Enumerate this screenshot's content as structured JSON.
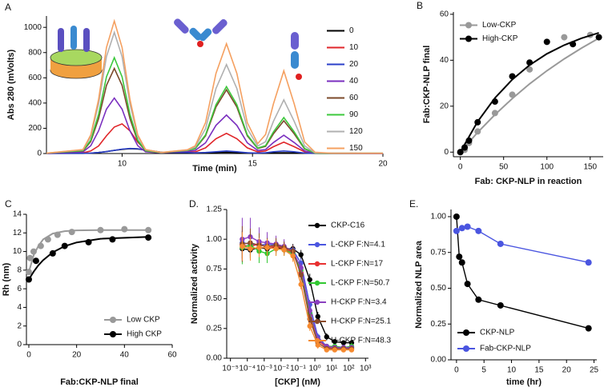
{
  "chart_data": [
    {
      "type": "line",
      "panel": "A",
      "xlabel": "Time (min)",
      "ylabel": "Abs 280 (mVolts)",
      "xlim": [
        7.1,
        20
      ],
      "ylim": [
        0,
        1090
      ],
      "xticks": [
        10,
        15,
        20
      ],
      "yticks": [
        0,
        200,
        400,
        600,
        800,
        1000
      ],
      "legend": "upper right",
      "x": [
        7.1,
        8.5,
        8.8,
        9.1,
        9.4,
        9.7,
        10.0,
        10.3,
        10.6,
        10.9,
        11.5,
        12.5,
        12.8,
        13.2,
        13.6,
        14.0,
        14.4,
        14.8,
        15.2,
        15.5,
        15.8,
        16.2,
        16.6,
        17.0,
        17.4,
        18,
        20
      ],
      "series": [
        {
          "name": "0",
          "color": "#000000",
          "values": [
            1,
            1,
            3,
            8,
            15,
            25,
            33,
            38,
            36,
            28,
            10,
            8,
            5,
            6,
            8,
            10,
            8,
            5,
            3,
            3,
            5,
            6,
            5,
            3,
            1,
            1,
            1
          ]
        },
        {
          "name": "10",
          "color": "#e0262a",
          "values": [
            1,
            5,
            20,
            60,
            140,
            210,
            235,
            180,
            90,
            30,
            6,
            12,
            12,
            45,
            117,
            160,
            117,
            45,
            13,
            20,
            54,
            90,
            54,
            13,
            2,
            1,
            1
          ]
        },
        {
          "name": "20",
          "color": "#2a3fc8",
          "values": [
            1,
            2,
            4,
            8,
            15,
            25,
            35,
            40,
            38,
            25,
            8,
            8,
            5,
            8,
            14,
            20,
            14,
            6,
            4,
            6,
            14,
            20,
            14,
            4,
            2,
            1,
            1
          ]
        },
        {
          "name": "40",
          "color": "#7a2fbf",
          "values": [
            2,
            13,
            62,
            180,
            352,
            440,
            352,
            180,
            62,
            13,
            5,
            18,
            24,
            85,
            223,
            305,
            223,
            85,
            24,
            32,
            87,
            145,
            87,
            20,
            3,
            2,
            1
          ]
        },
        {
          "name": "60",
          "color": "#7b4a2a",
          "values": [
            3,
            20,
            95,
            277,
            540,
            675,
            540,
            277,
            95,
            20,
            7,
            25,
            38,
            141,
            369,
            505,
            369,
            141,
            40,
            57,
            156,
            260,
            156,
            36,
            4,
            2,
            2
          ]
        },
        {
          "name": "90",
          "color": "#3cc83c",
          "values": [
            3,
            23,
            106,
            312,
            608,
            760,
            608,
            312,
            106,
            23,
            7,
            25,
            40,
            148,
            387,
            530,
            387,
            148,
            43,
            63,
            171,
            285,
            171,
            40,
            4,
            2,
            2
          ]
        },
        {
          "name": "120",
          "color": "#b0b0b0",
          "values": [
            3,
            29,
            134,
            394,
            768,
            960,
            768,
            394,
            134,
            29,
            8,
            28,
            50,
            197,
            515,
            705,
            515,
            197,
            59,
            94,
            255,
            425,
            255,
            60,
            6,
            3,
            2
          ]
        },
        {
          "name": "150",
          "color": "#f5a060",
          "values": [
            3,
            32,
            147,
            430,
            840,
            1050,
            840,
            430,
            147,
            32,
            8,
            30,
            60,
            245,
            635,
            870,
            635,
            245,
            78,
            150,
            393,
            655,
            393,
            92,
            10,
            3,
            2
          ]
        }
      ]
    },
    {
      "type": "scatter",
      "panel": "B",
      "xlabel": "Fab: CKP-NLP in reaction",
      "ylabel": "Fab:CKP-NLP final",
      "xlim": [
        -8,
        165
      ],
      "ylim": [
        -2,
        61
      ],
      "xticks": [
        0,
        50,
        100,
        150
      ],
      "yticks": [
        0,
        20,
        40,
        60
      ],
      "legend": "upper left",
      "series": [
        {
          "name": "Low-CKP",
          "color": "#999999",
          "x": [
            0,
            5,
            10,
            20,
            40,
            60,
            80,
            120,
            150
          ],
          "values": [
            0,
            1,
            4,
            9,
            17,
            25,
            36,
            50,
            51
          ],
          "fit": {
            "x": [
              0,
              20,
              40,
              60,
              80,
              100,
              120,
              140,
              160
            ],
            "values": [
              0,
              8.6,
              16.3,
              23.3,
              29.7,
              35.4,
              40.6,
              45.3,
              49.6
            ]
          }
        },
        {
          "name": "High-CKP",
          "color": "#000000",
          "x": [
            0,
            5,
            10,
            20,
            40,
            60,
            80,
            100,
            130,
            160
          ],
          "values": [
            0,
            2,
            5,
            13,
            22,
            33,
            39,
            48,
            47,
            50
          ],
          "fit": {
            "x": [
              0,
              20,
              40,
              60,
              80,
              100,
              120,
              140,
              160
            ],
            "values": [
              0,
              13.3,
              23.6,
              31.6,
              37.9,
              42.8,
              46.6,
              49.6,
              51.9
            ]
          }
        }
      ]
    },
    {
      "type": "scatter",
      "panel": "C",
      "xlabel": "Fab:CKP-NLP final",
      "ylabel": "Rh (nm)",
      "xlim": [
        -1,
        60
      ],
      "ylim": [
        0,
        14
      ],
      "xticks": [
        0,
        20,
        40,
        60
      ],
      "yticks": [
        0,
        2,
        4,
        6,
        8,
        10,
        12,
        14
      ],
      "legend": "lower right",
      "series": [
        {
          "name": "Low CKP",
          "color": "#999999",
          "x": [
            0,
            0.5,
            2,
            5,
            8,
            12,
            18,
            30,
            40,
            50
          ],
          "values": [
            7.8,
            9.3,
            10,
            10.6,
            11.3,
            11.8,
            12.1,
            12.3,
            12.4,
            12.3
          ],
          "fit": {
            "x": [
              0,
              2,
              4,
              6,
              10,
              15,
              20,
              30,
              50
            ],
            "values": [
              7.8,
              9.6,
              10.6,
              11.3,
              11.93,
              12.19,
              12.27,
              12.3,
              12.3
            ]
          }
        },
        {
          "name": "High CKP",
          "color": "#000000",
          "x": [
            0,
            3,
            10,
            15,
            25,
            35,
            50
          ],
          "values": [
            7,
            9,
            9.8,
            10.6,
            11,
            11.3,
            11.5
          ],
          "fit": {
            "x": [
              0,
              2,
              4,
              6,
              10,
              15,
              20,
              30,
              50
            ],
            "values": [
              7.0,
              7.83,
              8.52,
              9.08,
              9.91,
              10.57,
              10.98,
              11.37,
              11.57
            ]
          }
        }
      ]
    },
    {
      "type": "scatter",
      "panel": "D.",
      "xlabel": "[CKP] (nM)",
      "ylabel": "Normalized activity",
      "log_x": true,
      "lines": true,
      "xlim": [
        6e-06,
        1500
      ],
      "ylim": [
        0,
        1.25
      ],
      "xticks": [
        {
          "value": 1e-05,
          "label": "10⁻⁵"
        },
        {
          "value": 0.0001,
          "label": "10⁻⁴"
        },
        {
          "value": 0.001,
          "label": "10⁻³"
        },
        {
          "value": 0.01,
          "label": "10⁻²"
        },
        {
          "value": 0.1,
          "label": "10⁻¹"
        },
        {
          "value": 1,
          "label": "10⁰"
        },
        {
          "value": 10,
          "label": "10¹"
        },
        {
          "value": 100,
          "label": "10²"
        },
        {
          "value": 1000,
          "label": "10³"
        }
      ],
      "yticks": [
        {
          "value": 0,
          "label": "0.00"
        },
        {
          "value": 0.25,
          "label": "0.25"
        },
        {
          "value": 0.5,
          "label": "0.50"
        },
        {
          "value": 0.75,
          "label": "0.75"
        },
        {
          "value": 1,
          "label": "1.00"
        },
        {
          "value": 1.25,
          "label": "1.25"
        }
      ],
      "legend": "upper right",
      "series": [
        {
          "name": "CKP-C16",
          "color": "#000000",
          "x": [
            5e-05,
            0.00015,
            0.0005,
            0.0015,
            0.005,
            0.015,
            0.05,
            0.15,
            0.5,
            1.5,
            5,
            15,
            50,
            150
          ],
          "values": [
            0.92,
            0.91,
            0.93,
            0.92,
            0.93,
            0.92,
            0.92,
            0.87,
            0.66,
            0.35,
            0.18,
            0.14,
            0.13,
            0.13
          ],
          "errors": [
            0.08,
            0.07,
            0.06,
            0.05,
            0.05,
            0.05,
            0.04,
            0.04,
            0.05,
            0.04,
            0.03,
            0.02,
            0.02,
            0.02
          ]
        },
        {
          "name": "L-CKP F:N=4.1",
          "color": "#4a55e0",
          "x": [
            5e-05,
            0.00015,
            0.0005,
            0.0015,
            0.005,
            0.015,
            0.05,
            0.15,
            0.5,
            1.5,
            5,
            15,
            50,
            150
          ],
          "values": [
            0.97,
            0.96,
            0.95,
            0.96,
            0.95,
            0.93,
            0.91,
            0.8,
            0.45,
            0.18,
            0.1,
            0.09,
            0.09,
            0.09
          ],
          "errors": [
            0.1,
            0.09,
            0.07,
            0.06,
            0.05,
            0.05,
            0.04,
            0.04,
            0.04,
            0.03,
            0.02,
            0.02,
            0.02,
            0.02
          ]
        },
        {
          "name": "L-CKP F:N=17",
          "color": "#e83030",
          "x": [
            5e-05,
            0.00015,
            0.0005,
            0.0015,
            0.005,
            0.015,
            0.05,
            0.15,
            0.5,
            1.5,
            5,
            15,
            50,
            150
          ],
          "values": [
            0.95,
            0.94,
            0.96,
            0.93,
            0.94,
            0.92,
            0.89,
            0.72,
            0.36,
            0.15,
            0.09,
            0.08,
            0.08,
            0.08
          ],
          "errors": [
            0.12,
            0.1,
            0.08,
            0.06,
            0.05,
            0.05,
            0.04,
            0.04,
            0.04,
            0.03,
            0.02,
            0.02,
            0.02,
            0.02
          ]
        },
        {
          "name": "L-CKP F:N=50.7",
          "color": "#30c830",
          "x": [
            5e-05,
            0.00015,
            0.0005,
            0.0015,
            0.005,
            0.015,
            0.05,
            0.15,
            0.5,
            1.5,
            5,
            15,
            50,
            150
          ],
          "values": [
            0.93,
            0.95,
            0.9,
            0.88,
            0.92,
            0.91,
            0.88,
            0.74,
            0.38,
            0.16,
            0.1,
            0.1,
            0.09,
            0.1
          ],
          "errors": [
            0.14,
            0.12,
            0.1,
            0.08,
            0.06,
            0.05,
            0.05,
            0.04,
            0.04,
            0.03,
            0.02,
            0.02,
            0.02,
            0.03
          ]
        },
        {
          "name": "H-CKP F:N=3.4",
          "color": "#8a3fbf",
          "x": [
            5e-05,
            0.00015,
            0.0005,
            0.0015,
            0.005,
            0.015,
            0.05,
            0.15,
            0.5,
            1.5,
            5,
            15,
            50,
            150
          ],
          "values": [
            1.0,
            1.02,
            0.98,
            0.97,
            0.96,
            0.94,
            0.9,
            0.76,
            0.4,
            0.16,
            0.1,
            0.09,
            0.09,
            0.09
          ],
          "errors": [
            0.18,
            0.16,
            0.12,
            0.09,
            0.07,
            0.06,
            0.05,
            0.04,
            0.04,
            0.03,
            0.02,
            0.02,
            0.02,
            0.02
          ]
        },
        {
          "name": "H-CKP F:N=25.1",
          "color": "#8b4a2a",
          "x": [
            5e-05,
            0.00015,
            0.0005,
            0.0015,
            0.005,
            0.015,
            0.05,
            0.15,
            0.5,
            1.5,
            5,
            15,
            50,
            150
          ],
          "values": [
            0.96,
            0.97,
            0.95,
            0.94,
            0.95,
            0.93,
            0.9,
            0.7,
            0.33,
            0.13,
            0.08,
            0.08,
            0.08,
            0.08
          ],
          "errors": [
            0.15,
            0.12,
            0.1,
            0.07,
            0.06,
            0.05,
            0.05,
            0.04,
            0.04,
            0.03,
            0.02,
            0.02,
            0.02,
            0.02
          ]
        },
        {
          "name": "H-CKP F:N=48.3",
          "color": "#f58a30",
          "x": [
            5e-05,
            0.00015,
            0.0005,
            0.0015,
            0.005,
            0.015,
            0.05,
            0.15,
            0.5,
            1.5,
            5,
            15,
            50,
            150
          ],
          "values": [
            0.94,
            0.92,
            0.93,
            0.93,
            0.92,
            0.91,
            0.86,
            0.62,
            0.27,
            0.11,
            0.07,
            0.07,
            0.07,
            0.07
          ],
          "errors": [
            0.12,
            0.1,
            0.08,
            0.07,
            0.06,
            0.05,
            0.05,
            0.04,
            0.04,
            0.03,
            0.02,
            0.02,
            0.02,
            0.02
          ]
        }
      ]
    },
    {
      "type": "scatter",
      "panel": "E.",
      "xlabel": "time (hr)",
      "ylabel": "Normalized NLP area",
      "lines": true,
      "xlim": [
        -1,
        25.5
      ],
      "ylim": [
        0,
        1.05
      ],
      "xticks": [
        0,
        5,
        10,
        15,
        20,
        25
      ],
      "yticks": [
        {
          "value": 0,
          "label": "0.00"
        },
        {
          "value": 0.25,
          "label": "0.25"
        },
        {
          "value": 0.5,
          "label": "0.50"
        },
        {
          "value": 0.75,
          "label": "0.75"
        },
        {
          "value": 1,
          "label": "1.00"
        }
      ],
      "legend": "lower left",
      "series": [
        {
          "name": "CKP-NLP",
          "color": "#000000",
          "x": [
            0,
            0.5,
            1,
            2,
            4,
            8,
            24
          ],
          "values": [
            1.0,
            0.72,
            0.68,
            0.53,
            0.42,
            0.38,
            0.22
          ]
        },
        {
          "name": "Fab-CKP-NLP",
          "color": "#4a55e0",
          "x": [
            0,
            1,
            2,
            4,
            8,
            24
          ],
          "values": [
            0.9,
            0.92,
            0.93,
            0.9,
            0.81,
            0.68
          ]
        }
      ]
    }
  ]
}
